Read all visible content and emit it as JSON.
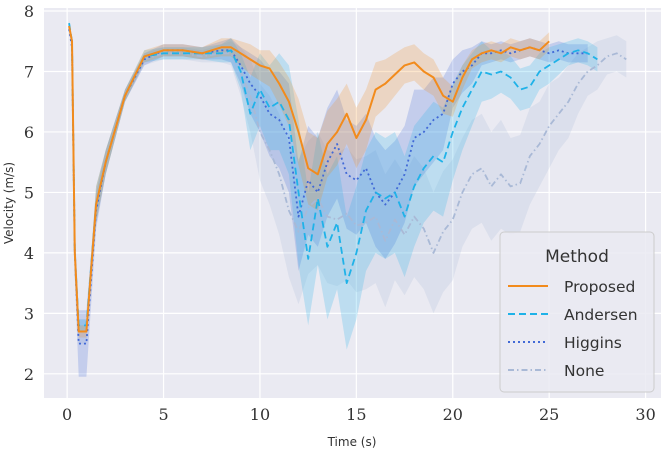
{
  "chart_data": {
    "type": "line",
    "xlabel": "Time (s)",
    "ylabel": "Velocity (m/s)",
    "xlim": [
      -1.2,
      30.8
    ],
    "ylim": [
      1.6,
      8.05
    ],
    "xticks": [
      0,
      5,
      10,
      15,
      20,
      25,
      30
    ],
    "yticks": [
      2,
      3,
      4,
      5,
      6,
      7,
      8
    ],
    "xtick_labels": [
      "0",
      "5",
      "10",
      "15",
      "20",
      "25",
      "30"
    ],
    "ytick_labels": [
      "2",
      "3",
      "4",
      "5",
      "6",
      "7",
      "8"
    ],
    "grid": true,
    "background": "#eaeaf2",
    "legend": {
      "title": "Method",
      "position": "lower-right"
    },
    "series": [
      {
        "name": "None",
        "color": "#a9b9d6",
        "dash": "dashdot",
        "x": [
          0.1,
          0.25,
          0.4,
          0.6,
          1.0,
          1.5,
          2.0,
          3.0,
          4.0,
          5.0,
          6.0,
          7.0,
          8.0,
          8.5,
          9.0,
          9.5,
          10.0,
          10.5,
          11.0,
          11.5,
          12.0,
          12.5,
          13.0,
          13.5,
          14.0,
          14.5,
          15.0,
          15.5,
          16.0,
          16.5,
          17.0,
          17.5,
          18.0,
          18.5,
          19.0,
          19.5,
          20.0,
          20.5,
          21.0,
          21.5,
          22.0,
          22.5,
          23.0,
          23.5,
          24.0,
          24.5,
          25.0,
          25.5,
          26.0,
          26.5,
          27.0,
          27.5,
          28.0,
          28.5,
          29.0
        ],
        "y": [
          7.75,
          7.5,
          4.0,
          2.7,
          2.7,
          4.8,
          5.5,
          6.6,
          7.2,
          7.3,
          7.3,
          7.25,
          7.3,
          7.3,
          7.0,
          6.6,
          6.0,
          5.7,
          5.3,
          4.7,
          4.35,
          4.75,
          4.9,
          4.6,
          4.55,
          4.65,
          4.45,
          4.5,
          4.6,
          4.2,
          4.55,
          4.3,
          4.6,
          4.4,
          4.0,
          4.35,
          4.55,
          5.0,
          5.3,
          5.4,
          5.1,
          5.3,
          5.1,
          5.15,
          5.6,
          5.8,
          6.1,
          6.3,
          6.5,
          6.8,
          7.0,
          7.1,
          7.25,
          7.3,
          7.2
        ],
        "band": [
          0.05,
          0.05,
          0.4,
          0.2,
          0.2,
          0.3,
          0.2,
          0.1,
          0.1,
          0.1,
          0.1,
          0.1,
          0.15,
          0.2,
          0.4,
          0.6,
          0.8,
          0.9,
          1.0,
          1.1,
          1.2,
          1.1,
          1.1,
          1.1,
          1.1,
          1.1,
          1.1,
          1.1,
          1.1,
          1.1,
          1.0,
          1.0,
          1.0,
          1.0,
          1.0,
          1.0,
          1.0,
          0.9,
          0.9,
          0.9,
          0.9,
          0.9,
          0.8,
          0.8,
          0.8,
          0.7,
          0.7,
          0.6,
          0.6,
          0.5,
          0.4,
          0.4,
          0.3,
          0.3,
          0.3
        ]
      },
      {
        "name": "Higgins",
        "color": "#4169d6",
        "dash": "dotted",
        "x": [
          0.1,
          0.25,
          0.4,
          0.6,
          1.0,
          1.5,
          2.0,
          3.0,
          4.0,
          5.0,
          6.0,
          7.0,
          8.0,
          8.5,
          9.0,
          9.5,
          10.0,
          10.5,
          11.0,
          11.5,
          12.0,
          12.5,
          13.0,
          13.5,
          14.0,
          14.5,
          15.0,
          15.5,
          16.0,
          16.5,
          17.0,
          17.5,
          18.0,
          18.5,
          19.0,
          19.5,
          20.0,
          20.5,
          21.0,
          21.5,
          22.0,
          22.5,
          23.0,
          23.5,
          24.0,
          24.5,
          25.0,
          25.5,
          26.0,
          26.5,
          27.0
        ],
        "y": [
          7.7,
          7.4,
          4.0,
          2.5,
          2.5,
          4.7,
          5.5,
          6.6,
          7.2,
          7.35,
          7.35,
          7.3,
          7.35,
          7.35,
          7.1,
          6.8,
          6.6,
          6.3,
          6.2,
          5.9,
          4.6,
          5.2,
          5.0,
          5.5,
          5.8,
          5.3,
          5.2,
          5.4,
          5.0,
          4.8,
          5.0,
          5.3,
          5.9,
          6.0,
          6.2,
          6.3,
          6.8,
          7.0,
          7.1,
          7.3,
          7.3,
          7.35,
          7.3,
          7.35,
          7.4,
          7.35,
          7.3,
          7.35,
          7.3,
          7.3,
          7.3
        ],
        "band": [
          0.05,
          0.05,
          0.4,
          0.55,
          0.55,
          0.3,
          0.2,
          0.1,
          0.1,
          0.1,
          0.1,
          0.1,
          0.15,
          0.2,
          0.3,
          0.5,
          0.6,
          0.7,
          0.8,
          0.9,
          0.9,
          0.9,
          0.9,
          0.9,
          0.9,
          0.9,
          0.9,
          0.9,
          0.9,
          0.9,
          0.85,
          0.8,
          0.8,
          0.7,
          0.7,
          0.6,
          0.4,
          0.35,
          0.3,
          0.2,
          0.15,
          0.15,
          0.15,
          0.15,
          0.15,
          0.15,
          0.15,
          0.15,
          0.15,
          0.15,
          0.15
        ]
      },
      {
        "name": "Andersen",
        "color": "#1fb2e8",
        "dash": "dashed",
        "x": [
          0.1,
          0.25,
          0.4,
          0.6,
          1.0,
          1.5,
          2.0,
          3.0,
          4.0,
          5.0,
          6.0,
          7.0,
          8.0,
          8.5,
          9.0,
          9.5,
          10.0,
          10.5,
          11.0,
          11.5,
          12.0,
          12.5,
          13.0,
          13.5,
          14.0,
          14.5,
          15.0,
          15.5,
          16.0,
          16.5,
          17.0,
          17.5,
          18.0,
          18.5,
          19.0,
          19.5,
          20.0,
          20.5,
          21.0,
          21.5,
          22.0,
          22.5,
          23.0,
          23.5,
          24.0,
          24.5,
          25.0,
          25.5,
          26.0,
          26.5,
          27.0,
          27.5
        ],
        "y": [
          7.8,
          7.5,
          4.0,
          2.8,
          2.8,
          4.8,
          5.5,
          6.6,
          7.25,
          7.3,
          7.3,
          7.3,
          7.3,
          7.35,
          7.0,
          6.3,
          6.7,
          6.4,
          6.5,
          6.2,
          5.0,
          3.9,
          4.9,
          4.1,
          4.5,
          3.5,
          4.0,
          4.7,
          5.0,
          4.9,
          5.0,
          4.6,
          5.1,
          5.4,
          5.6,
          5.5,
          6.0,
          6.4,
          6.7,
          7.0,
          6.95,
          7.0,
          6.9,
          6.7,
          6.75,
          7.0,
          7.1,
          7.2,
          7.3,
          7.35,
          7.3,
          7.2
        ],
        "band": [
          0.05,
          0.05,
          0.4,
          0.1,
          0.1,
          0.3,
          0.2,
          0.1,
          0.1,
          0.1,
          0.1,
          0.1,
          0.15,
          0.2,
          0.3,
          0.6,
          0.6,
          0.7,
          0.8,
          0.9,
          1.2,
          1.1,
          1.1,
          1.2,
          1.1,
          1.1,
          1.1,
          1.0,
          1.0,
          1.0,
          1.0,
          1.0,
          1.0,
          0.9,
          0.9,
          0.9,
          0.8,
          0.7,
          0.6,
          0.5,
          0.4,
          0.35,
          0.35,
          0.35,
          0.35,
          0.3,
          0.3,
          0.25,
          0.2,
          0.2,
          0.2,
          0.2
        ]
      },
      {
        "name": "Proposed",
        "color": "#f28b1c",
        "dash": "solid",
        "x": [
          0.1,
          0.25,
          0.4,
          0.6,
          1.0,
          1.5,
          2.0,
          3.0,
          4.0,
          5.0,
          6.0,
          7.0,
          8.0,
          8.5,
          9.0,
          9.5,
          10.0,
          10.5,
          11.0,
          11.5,
          12.0,
          12.5,
          13.0,
          13.5,
          14.0,
          14.5,
          15.0,
          15.5,
          16.0,
          16.5,
          17.0,
          17.5,
          18.0,
          18.5,
          19.0,
          19.5,
          20.0,
          20.5,
          21.0,
          21.5,
          22.0,
          22.5,
          23.0,
          23.5,
          24.0,
          24.5,
          25.0
        ],
        "y": [
          7.75,
          7.5,
          4.0,
          2.7,
          2.7,
          4.8,
          5.5,
          6.6,
          7.25,
          7.35,
          7.35,
          7.3,
          7.4,
          7.4,
          7.3,
          7.2,
          7.1,
          7.05,
          6.8,
          6.5,
          6.0,
          5.4,
          5.3,
          5.8,
          6.0,
          6.3,
          5.9,
          6.2,
          6.7,
          6.8,
          6.95,
          7.1,
          7.15,
          7.0,
          6.9,
          6.6,
          6.5,
          6.9,
          7.2,
          7.3,
          7.35,
          7.3,
          7.4,
          7.35,
          7.4,
          7.35,
          7.5
        ],
        "band": [
          0.05,
          0.05,
          0.4,
          0.1,
          0.1,
          0.3,
          0.2,
          0.1,
          0.1,
          0.1,
          0.1,
          0.1,
          0.15,
          0.15,
          0.2,
          0.25,
          0.25,
          0.3,
          0.35,
          0.4,
          0.55,
          0.6,
          0.6,
          0.55,
          0.55,
          0.5,
          0.5,
          0.5,
          0.45,
          0.4,
          0.35,
          0.3,
          0.3,
          0.3,
          0.3,
          0.3,
          0.25,
          0.2,
          0.15,
          0.15,
          0.15,
          0.15,
          0.15,
          0.15,
          0.15,
          0.15,
          0.15
        ]
      }
    ],
    "legend_order": [
      "Proposed",
      "Andersen",
      "Higgins",
      "None"
    ]
  }
}
